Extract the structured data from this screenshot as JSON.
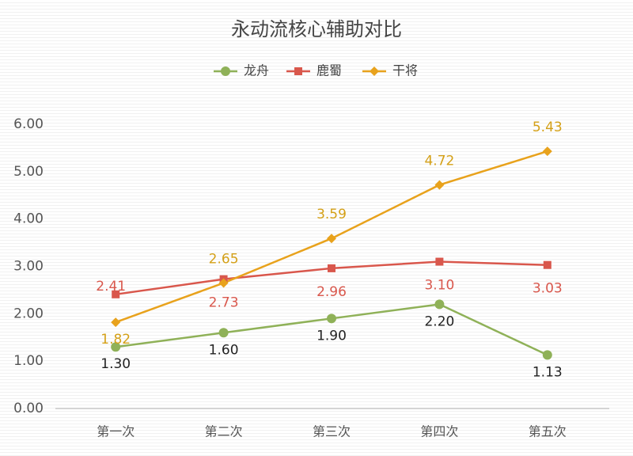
{
  "chart_data": {
    "type": "line",
    "title": "永动流核心辅助对比",
    "categories": [
      "第一次",
      "第二次",
      "第三次",
      "第四次",
      "第五次"
    ],
    "series": [
      {
        "name": "龙舟",
        "color": "#8fb158",
        "values": [
          1.3,
          1.6,
          1.9,
          2.2,
          1.13
        ],
        "value_labels": [
          "1.30",
          "1.60",
          "1.90",
          "2.20",
          "1.13"
        ]
      },
      {
        "name": "鹿蜀",
        "color": "#d9574c",
        "values": [
          2.41,
          2.73,
          2.96,
          3.1,
          3.03
        ],
        "value_labels": [
          "2.41",
          "2.73",
          "2.96",
          "3.10",
          "3.03"
        ]
      },
      {
        "name": "干将",
        "color": "#e8a21c",
        "values": [
          1.82,
          2.65,
          3.59,
          4.72,
          5.43
        ],
        "value_labels": [
          "1.82",
          "2.65",
          "3.59",
          "4.72",
          "5.43"
        ]
      }
    ],
    "ylim": [
      0,
      6
    ],
    "yticks": [
      {
        "value": 0,
        "label": "0.00"
      },
      {
        "value": 1,
        "label": "1.00"
      },
      {
        "value": 2,
        "label": "2.00"
      },
      {
        "value": 3,
        "label": "3.00"
      },
      {
        "value": 4,
        "label": "4.00"
      },
      {
        "value": 5,
        "label": "5.00"
      },
      {
        "value": 6,
        "label": "6.00"
      }
    ],
    "grid": false,
    "legend": "top"
  }
}
